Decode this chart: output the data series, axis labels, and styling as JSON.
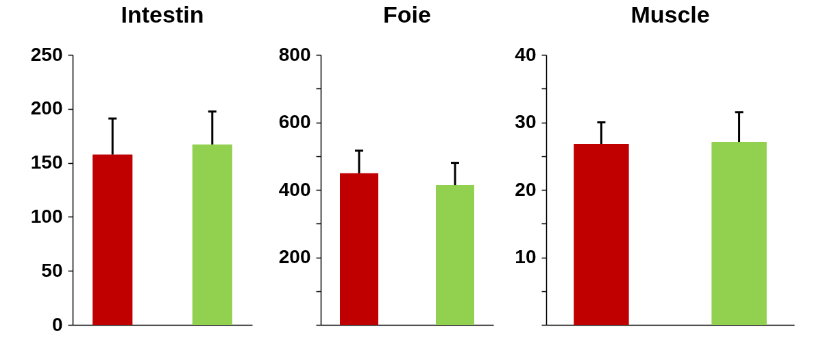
{
  "chart_data": [
    {
      "type": "bar",
      "title": "Intestin",
      "categories": [
        null,
        null
      ],
      "values": [
        157.6,
        167
      ],
      "colors": [
        "#c00000",
        "#92d050"
      ],
      "errors": [
        [
          157.6,
          191
        ],
        [
          167,
          197.5
        ]
      ],
      "ylim": [
        0,
        250
      ],
      "yticks": [
        0,
        50,
        100,
        150,
        200,
        250
      ]
    },
    {
      "type": "bar",
      "title": "Foie",
      "categories": [
        null,
        null
      ],
      "values": [
        449,
        414
      ],
      "colors": [
        "#c00000",
        "#92d050"
      ],
      "errors": [
        [
          449,
          516
        ],
        [
          414,
          480
        ]
      ],
      "ylim": [
        0,
        800
      ],
      "yticks": [
        {
          "value": 0,
          "label": null
        },
        {
          "value": 100,
          "label": null
        },
        200,
        {
          "value": 300,
          "label": null
        },
        400,
        {
          "value": 500,
          "label": null
        },
        600,
        {
          "value": 700,
          "label": null
        },
        800
      ]
    },
    {
      "type": "bar",
      "title": "Muscle",
      "categories": [
        null,
        null
      ],
      "values": [
        26.8,
        27.1
      ],
      "colors": [
        "#c00000",
        "#92d050"
      ],
      "errors": [
        [
          26.8,
          30
        ],
        [
          27.1,
          31.5
        ]
      ],
      "ylim": [
        0,
        40
      ],
      "yticks": [
        {
          "value": 0,
          "label": null
        },
        {
          "value": 5,
          "label": null
        },
        10,
        {
          "value": 15,
          "label": null
        },
        20,
        {
          "value": 25,
          "label": null
        },
        30,
        {
          "value": 35,
          "label": null
        },
        40
      ]
    }
  ]
}
